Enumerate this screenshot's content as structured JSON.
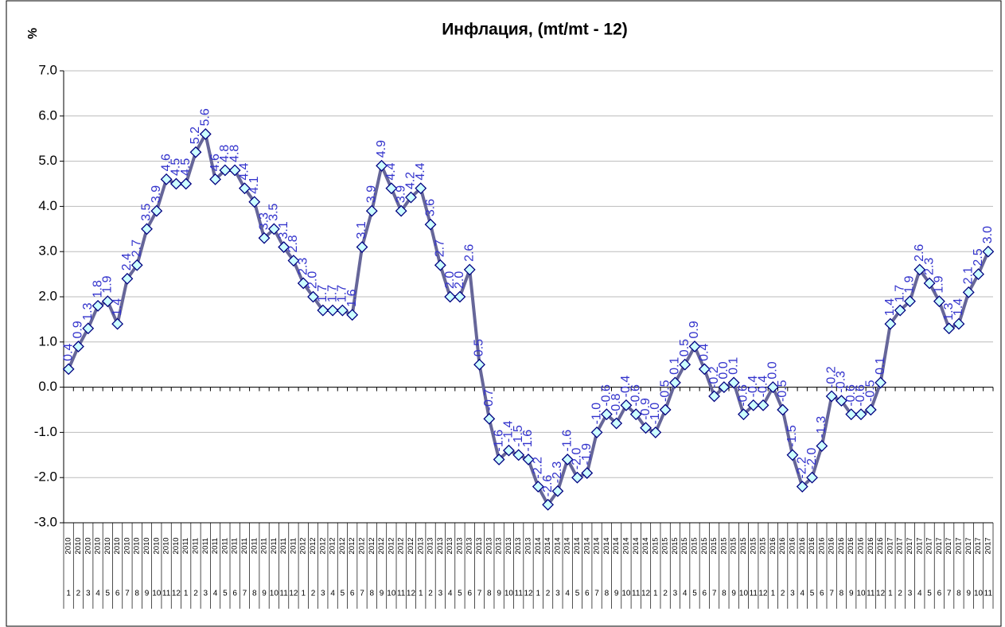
{
  "chart_data": {
    "type": "line",
    "title": "Инфлация, (mt/mt - 12)",
    "y_label": "%",
    "categories": [
      {
        "year": "2010",
        "month": "1"
      },
      {
        "year": "2010",
        "month": "2"
      },
      {
        "year": "2010",
        "month": "3"
      },
      {
        "year": "2010",
        "month": "4"
      },
      {
        "year": "2010",
        "month": "5"
      },
      {
        "year": "2010",
        "month": "6"
      },
      {
        "year": "2010",
        "month": "7"
      },
      {
        "year": "2010",
        "month": "8"
      },
      {
        "year": "2010",
        "month": "9"
      },
      {
        "year": "2010",
        "month": "10"
      },
      {
        "year": "2010",
        "month": "11"
      },
      {
        "year": "2010",
        "month": "12"
      },
      {
        "year": "2011",
        "month": "1"
      },
      {
        "year": "2011",
        "month": "2"
      },
      {
        "year": "2011",
        "month": "3"
      },
      {
        "year": "2011",
        "month": "4"
      },
      {
        "year": "2011",
        "month": "5"
      },
      {
        "year": "2011",
        "month": "6"
      },
      {
        "year": "2011",
        "month": "7"
      },
      {
        "year": "2011",
        "month": "8"
      },
      {
        "year": "2011",
        "month": "9"
      },
      {
        "year": "2011",
        "month": "10"
      },
      {
        "year": "2011",
        "month": "11"
      },
      {
        "year": "2011",
        "month": "12"
      },
      {
        "year": "2012",
        "month": "1"
      },
      {
        "year": "2012",
        "month": "2"
      },
      {
        "year": "2012",
        "month": "3"
      },
      {
        "year": "2012",
        "month": "4"
      },
      {
        "year": "2012",
        "month": "5"
      },
      {
        "year": "2012",
        "month": "6"
      },
      {
        "year": "2012",
        "month": "7"
      },
      {
        "year": "2012",
        "month": "8"
      },
      {
        "year": "2012",
        "month": "9"
      },
      {
        "year": "2012",
        "month": "10"
      },
      {
        "year": "2012",
        "month": "11"
      },
      {
        "year": "2012",
        "month": "12"
      },
      {
        "year": "2013",
        "month": "1"
      },
      {
        "year": "2013",
        "month": "2"
      },
      {
        "year": "2013",
        "month": "3"
      },
      {
        "year": "2013",
        "month": "4"
      },
      {
        "year": "2013",
        "month": "5"
      },
      {
        "year": "2013",
        "month": "6"
      },
      {
        "year": "2013",
        "month": "7"
      },
      {
        "year": "2013",
        "month": "8"
      },
      {
        "year": "2013",
        "month": "9"
      },
      {
        "year": "2013",
        "month": "10"
      },
      {
        "year": "2013",
        "month": "11"
      },
      {
        "year": "2013",
        "month": "12"
      },
      {
        "year": "2014",
        "month": "1"
      },
      {
        "year": "2014",
        "month": "2"
      },
      {
        "year": "2014",
        "month": "3"
      },
      {
        "year": "2014",
        "month": "4"
      },
      {
        "year": "2014",
        "month": "5"
      },
      {
        "year": "2014",
        "month": "6"
      },
      {
        "year": "2014",
        "month": "7"
      },
      {
        "year": "2014",
        "month": "8"
      },
      {
        "year": "2014",
        "month": "9"
      },
      {
        "year": "2014",
        "month": "10"
      },
      {
        "year": "2014",
        "month": "11"
      },
      {
        "year": "2014",
        "month": "12"
      },
      {
        "year": "2015",
        "month": "1"
      },
      {
        "year": "2015",
        "month": "2"
      },
      {
        "year": "2015",
        "month": "3"
      },
      {
        "year": "2015",
        "month": "4"
      },
      {
        "year": "2015",
        "month": "5"
      },
      {
        "year": "2015",
        "month": "6"
      },
      {
        "year": "2015",
        "month": "7"
      },
      {
        "year": "2015",
        "month": "8"
      },
      {
        "year": "2015",
        "month": "9"
      },
      {
        "year": "2015",
        "month": "10"
      },
      {
        "year": "2015",
        "month": "11"
      },
      {
        "year": "2015",
        "month": "12"
      },
      {
        "year": "2016",
        "month": "1"
      },
      {
        "year": "2016",
        "month": "2"
      },
      {
        "year": "2016",
        "month": "3"
      },
      {
        "year": "2016",
        "month": "4"
      },
      {
        "year": "2016",
        "month": "5"
      },
      {
        "year": "2016",
        "month": "6"
      },
      {
        "year": "2016",
        "month": "7"
      },
      {
        "year": "2016",
        "month": "8"
      },
      {
        "year": "2016",
        "month": "9"
      },
      {
        "year": "2016",
        "month": "10"
      },
      {
        "year": "2016",
        "month": "11"
      },
      {
        "year": "2016",
        "month": "12"
      },
      {
        "year": "2017",
        "month": "1"
      },
      {
        "year": "2017",
        "month": "2"
      },
      {
        "year": "2017",
        "month": "3"
      },
      {
        "year": "2017",
        "month": "4"
      },
      {
        "year": "2017",
        "month": "5"
      },
      {
        "year": "2017",
        "month": "6"
      },
      {
        "year": "2017",
        "month": "7"
      },
      {
        "year": "2017",
        "month": "8"
      },
      {
        "year": "2017",
        "month": "9"
      },
      {
        "year": "2017",
        "month": "10"
      },
      {
        "year": "2017",
        "month": "11"
      }
    ],
    "values": [
      0.4,
      0.9,
      1.3,
      1.8,
      1.9,
      1.4,
      2.4,
      2.7,
      3.5,
      3.9,
      4.6,
      4.5,
      4.5,
      5.2,
      5.6,
      4.6,
      4.8,
      4.8,
      4.4,
      4.1,
      3.3,
      3.5,
      3.1,
      2.8,
      2.3,
      2.0,
      1.7,
      1.7,
      1.7,
      1.6,
      3.1,
      3.9,
      4.9,
      4.4,
      3.9,
      4.2,
      4.4,
      3.6,
      2.7,
      2.0,
      2.0,
      2.6,
      0.5,
      -0.7,
      -1.6,
      -1.4,
      -1.5,
      -1.6,
      -2.2,
      -2.6,
      -2.3,
      -1.6,
      -2.0,
      -1.9,
      -1.0,
      -0.6,
      -0.8,
      -0.4,
      -0.6,
      -0.9,
      -1.0,
      -0.5,
      0.1,
      0.5,
      0.9,
      0.4,
      -0.2,
      0.0,
      0.1,
      -0.6,
      -0.4,
      -0.4,
      0.0,
      -0.5,
      -1.5,
      -2.2,
      -2.0,
      -1.3,
      -0.2,
      -0.3,
      -0.6,
      -0.6,
      -0.5,
      0.1,
      1.4,
      1.7,
      1.9,
      2.6,
      2.3,
      1.9,
      1.3,
      1.4,
      2.1,
      2.5,
      3.0
    ],
    "value_labels": [
      "0.4",
      "0.9",
      "1.3",
      "1.8",
      "1.9",
      "1.4",
      "2.4",
      "2.7",
      "3.5",
      "3.9",
      "4.6",
      "4.5",
      "4.5",
      "5.2",
      "5.6",
      "4.6",
      "4.8",
      "4.8",
      "4.4",
      "4.1",
      "3.3",
      "3.5",
      "3.1",
      "2.8",
      "2.3",
      "2.0",
      "1.7",
      "1.7",
      "1.7",
      "1.6",
      "3.1",
      "3.9",
      "4.9",
      "4.4",
      "3.9",
      "4.2",
      "4.4",
      "3.6",
      "2.7",
      "2.0",
      "2.0",
      "2.6",
      "0.5",
      "-0.7",
      "-1.6",
      "-1.4",
      "-1.5",
      "-1.6",
      "-2.2",
      "-2.6",
      "-2.3",
      "-1.6",
      "-2.0",
      "-1.9",
      "-1.0",
      "-0.6",
      "-0.8",
      "-0.4",
      "-0.6",
      "-0.9",
      "-1.0",
      "-0.5",
      "0.1",
      "0.5",
      "0.9",
      "0.4",
      "-0.2",
      "0.0",
      "0.1",
      "-0.6",
      "-0.4",
      "-0.4",
      "0.0",
      "-0.5",
      "-1.5",
      "-2.2",
      "-2.0",
      "-1.3",
      "-0.2",
      "-0.3",
      "-0.6",
      "-0.6",
      "-0.5",
      "0.1",
      "1.4",
      "1.7",
      "1.9",
      "2.6",
      "2.3",
      "1.9",
      "1.3",
      "1.4",
      "2.1",
      "2.5",
      "3.0"
    ],
    "color": "#666699",
    "marker_fill": "#ccffff",
    "marker_stroke": "#000080",
    "label_color": "#3333cc",
    "ylim": [
      -3,
      7
    ],
    "yticks": [
      {
        "value": -3,
        "label": "-3.0"
      },
      {
        "value": -2,
        "label": "-2.0"
      },
      {
        "value": -1,
        "label": "-1.0"
      },
      {
        "value": 0,
        "label": "0.0"
      },
      {
        "value": 1,
        "label": "1.0"
      },
      {
        "value": 2,
        "label": "2.0"
      },
      {
        "value": 3,
        "label": "3.0"
      },
      {
        "value": 4,
        "label": "4.0"
      },
      {
        "value": 5,
        "label": "5.0"
      },
      {
        "value": 6,
        "label": "6.0"
      },
      {
        "value": 7,
        "label": "7.0"
      }
    ],
    "grid": true
  }
}
